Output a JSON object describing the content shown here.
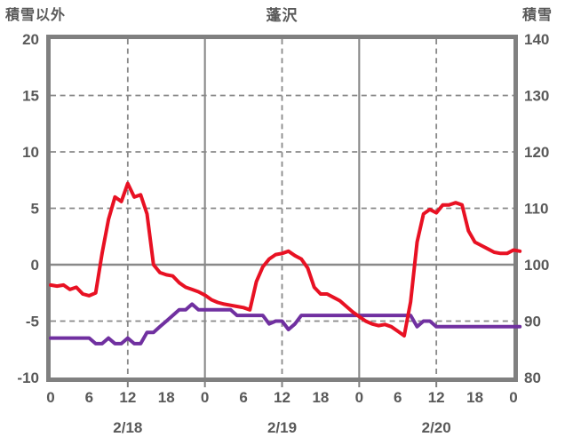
{
  "header": {
    "left_axis_title": "積雪以外",
    "chart_title": "蓬沢",
    "right_axis_title": "積雪"
  },
  "colors": {
    "series_non_snow": "#e81123",
    "series_snow": "#7030a0",
    "grid": "#898989",
    "border": "#808080",
    "text": "#595959",
    "background": "#ffffff"
  },
  "chart_data": {
    "type": "line",
    "title": "蓬沢",
    "left_axis": {
      "title": "積雪以外",
      "min": -10,
      "max": 20,
      "ticks": [
        20,
        15,
        10,
        5,
        0,
        -5,
        -10
      ]
    },
    "right_axis": {
      "title": "積雪",
      "min": 80,
      "max": 140,
      "ticks": [
        140,
        130,
        120,
        110,
        100,
        90,
        80
      ]
    },
    "x_axis": {
      "total_hours": 72,
      "hour_label_step": 6,
      "hour_labels": [
        "0",
        "6",
        "12",
        "18",
        "0",
        "6",
        "12",
        "18",
        "0",
        "6",
        "12",
        "18",
        "0"
      ],
      "date_labels": [
        "2/18",
        "2/19",
        "2/20"
      ],
      "bottom_tick_hours": [
        12,
        24,
        36,
        48,
        60
      ]
    },
    "gridlines": {
      "horizontal_dashed": [
        15,
        10,
        5,
        -5
      ],
      "horizontal_solid": [
        0
      ],
      "vertical_dashed_hours": [
        12,
        36,
        60
      ],
      "vertical_solid_hours": [
        24,
        48
      ]
    },
    "legend": "none",
    "series": [
      {
        "name": "積雪以外",
        "axis": "left",
        "color": "#e81123",
        "values": [
          -1.8,
          -1.9,
          -1.8,
          -2.2,
          -2.0,
          -2.6,
          -2.75,
          -2.5,
          1.0,
          4.0,
          6.0,
          5.6,
          7.2,
          6.0,
          6.2,
          4.5,
          0.0,
          -0.7,
          -0.9,
          -1.0,
          -1.6,
          -2.0,
          -2.2,
          -2.4,
          -2.7,
          -3.1,
          -3.35,
          -3.5,
          -3.6,
          -3.7,
          -3.8,
          -4.0,
          -1.5,
          -0.2,
          0.5,
          0.9,
          1.0,
          1.2,
          0.8,
          0.5,
          -0.3,
          -2.0,
          -2.6,
          -2.6,
          -2.9,
          -3.2,
          -3.7,
          -4.2,
          -4.6,
          -5.0,
          -5.25,
          -5.4,
          -5.3,
          -5.5,
          -5.9,
          -6.3,
          -3.3,
          2.0,
          4.5,
          4.9,
          4.6,
          5.3,
          5.3,
          5.5,
          5.3,
          3.0,
          2.0,
          1.7,
          1.4,
          1.1,
          1.0,
          1.0,
          1.3,
          1.2
        ]
      },
      {
        "name": "積雪",
        "axis": "right",
        "color": "#7030a0",
        "values": [
          87,
          87,
          87,
          87,
          87,
          87,
          87,
          86,
          86,
          87,
          86,
          86,
          87,
          86,
          86,
          88,
          88,
          89,
          90,
          91,
          92,
          92,
          93,
          92,
          92,
          92,
          92,
          92,
          92,
          91,
          91,
          91,
          91,
          91,
          89.5,
          90,
          90,
          88.5,
          89.5,
          91,
          91,
          91,
          91,
          91,
          91,
          91,
          91,
          91,
          91,
          91,
          91,
          91,
          91,
          91,
          91,
          91,
          91,
          89,
          90,
          90,
          89,
          89,
          89,
          89,
          89,
          89,
          89,
          89,
          89,
          89,
          89,
          89,
          89,
          89
        ]
      }
    ]
  }
}
